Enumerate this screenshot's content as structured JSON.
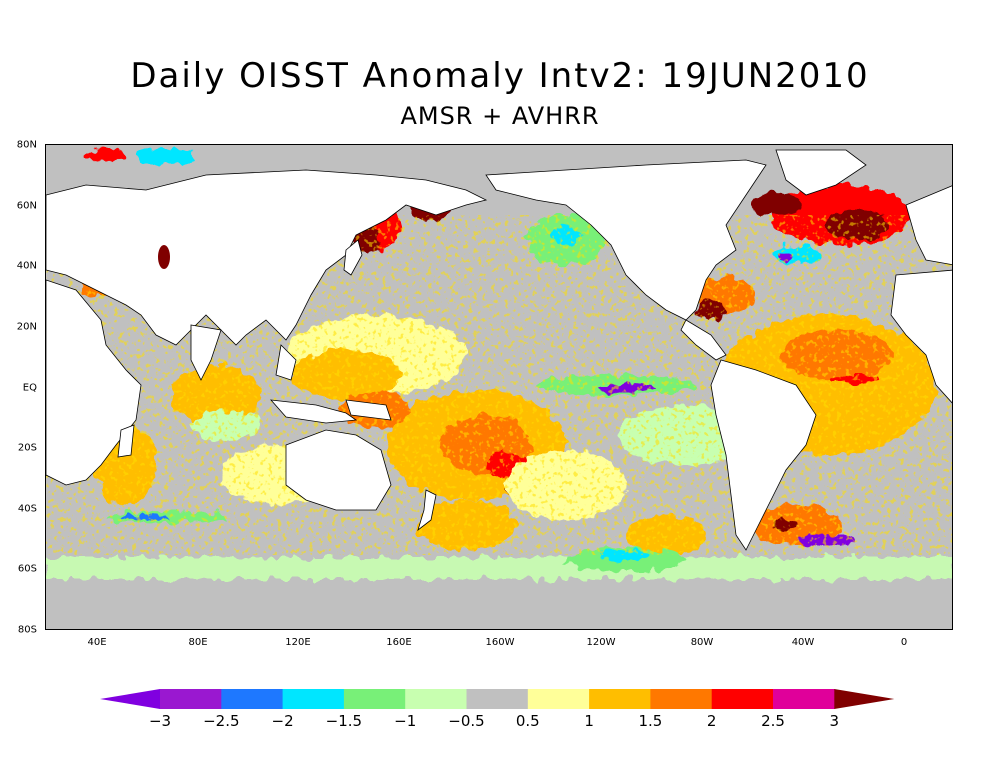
{
  "title": "Daily OISST Anomaly Intv2: 19JUN2010",
  "subtitle": "AMSR + AVHRR",
  "lat_labels": [
    "80N",
    "60N",
    "40N",
    "20N",
    "EQ",
    "20S",
    "40S",
    "60S",
    "80S"
  ],
  "lon_labels": [
    "40E",
    "80E",
    "120E",
    "160E",
    "160W",
    "120W",
    "80W",
    "40W",
    "0"
  ],
  "colorbar": {
    "labels": [
      "−3",
      "−2.5",
      "−2",
      "−1.5",
      "−1",
      "−0.5",
      "0.5",
      "1",
      "1.5",
      "2",
      "2.5",
      "3"
    ],
    "colors": [
      "#8000e0",
      "#9a18d0",
      "#1e78ff",
      "#00e6ff",
      "#78f078",
      "#c8ffb0",
      "#c0c0c0",
      "#ffff99",
      "#ffbe00",
      "#ff7800",
      "#ff0000",
      "#e0009a",
      "#800000"
    ]
  },
  "map": {
    "ocean_neutral_color": "#c0c0c0",
    "land_color": "#ffffff",
    "coast_color": "#000000"
  }
}
